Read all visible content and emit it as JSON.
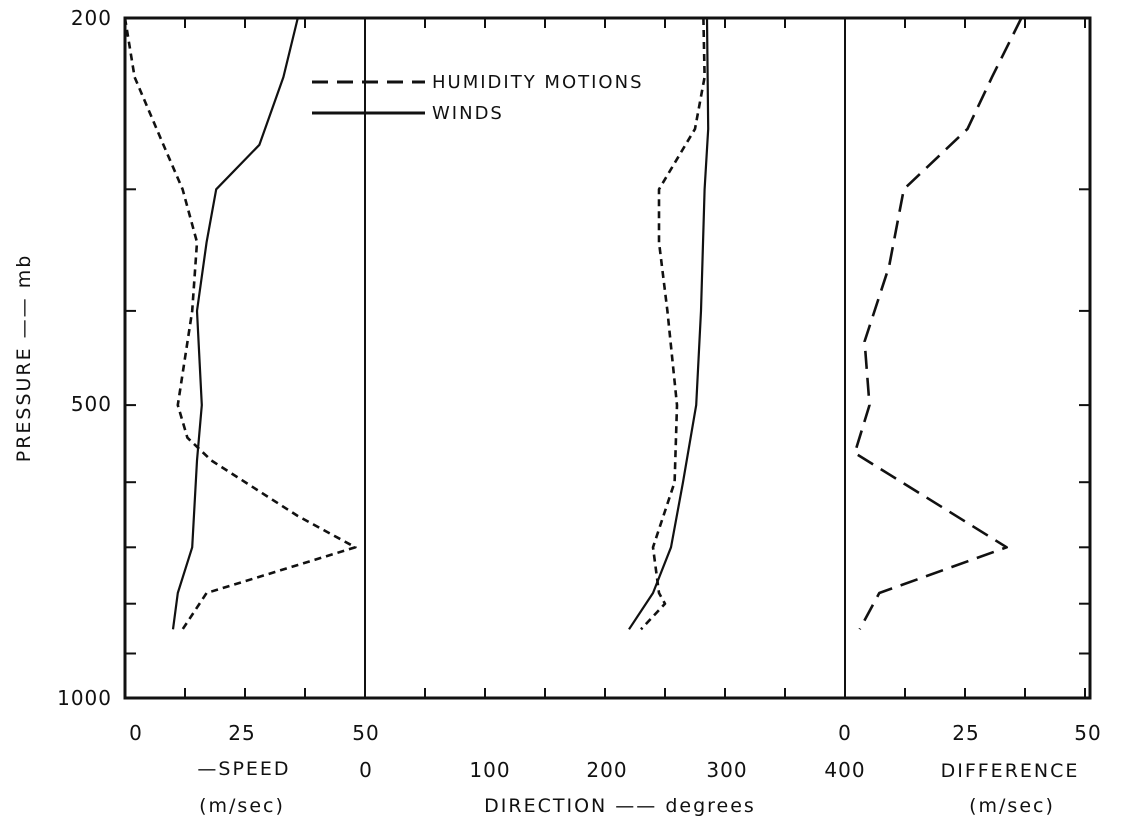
{
  "chart_data": {
    "type": "line",
    "ylabel": "PRESSURE —— mb",
    "y_scale": "log",
    "y_reversed": true,
    "ylim": [
      200,
      1000
    ],
    "y_ticks": [
      200,
      300,
      400,
      500,
      600,
      700,
      800,
      900,
      1000
    ],
    "y_tick_labels": [
      "200",
      "500",
      "1000"
    ],
    "legend": {
      "placement": "top",
      "entries": [
        {
          "label": "HUMIDITY MOTIONS",
          "style": "dashed"
        },
        {
          "label": "WINDS",
          "style": "solid"
        }
      ]
    },
    "panels": [
      {
        "name": "speed",
        "xlabel_lines": [
          "—SPEED",
          "(m/sec)"
        ],
        "xlim": [
          0,
          50
        ],
        "x_tick_labels": [
          "0",
          "25",
          "50"
        ],
        "series": [
          {
            "name": "HUMIDITY MOTIONS",
            "style": "dashed",
            "points": [
              [
                0,
                200
              ],
              [
                2,
                230
              ],
              [
                8,
                270
              ],
              [
                12,
                300
              ],
              [
                15,
                340
              ],
              [
                14,
                400
              ],
              [
                11,
                500
              ],
              [
                13,
                540
              ],
              [
                18,
                570
              ],
              [
                36,
                650
              ],
              [
                48,
                700
              ],
              [
                17,
                780
              ],
              [
                12,
                850
              ]
            ]
          },
          {
            "name": "WINDS",
            "style": "solid",
            "points": [
              [
                36,
                200
              ],
              [
                33,
                230
              ],
              [
                28,
                270
              ],
              [
                19,
                300
              ],
              [
                17,
                340
              ],
              [
                15,
                400
              ],
              [
                16,
                500
              ],
              [
                15,
                570
              ],
              [
                14,
                700
              ],
              [
                11,
                780
              ],
              [
                10,
                850
              ]
            ]
          }
        ]
      },
      {
        "name": "direction",
        "xlabel_lines": [
          "DIRECTION —— degrees"
        ],
        "xlim": [
          0,
          400
        ],
        "x_tick_labels": [
          "0",
          "100",
          "200",
          "300",
          "400"
        ],
        "series": [
          {
            "name": "HUMIDITY MOTIONS",
            "style": "dashed",
            "points": [
              [
                282,
                200
              ],
              [
                283,
                230
              ],
              [
                275,
                260
              ],
              [
                245,
                300
              ],
              [
                245,
                340
              ],
              [
                252,
                400
              ],
              [
                260,
                500
              ],
              [
                258,
                600
              ],
              [
                240,
                700
              ],
              [
                245,
                780
              ],
              [
                250,
                800
              ],
              [
                230,
                850
              ]
            ]
          },
          {
            "name": "WINDS",
            "style": "solid",
            "points": [
              [
                285,
                200
              ],
              [
                286,
                260
              ],
              [
                283,
                300
              ],
              [
                280,
                400
              ],
              [
                276,
                500
              ],
              [
                265,
                600
              ],
              [
                255,
                700
              ],
              [
                240,
                780
              ],
              [
                220,
                850
              ]
            ]
          }
        ]
      },
      {
        "name": "difference",
        "xlabel_lines": [
          "DIFFERENCE",
          "(m/sec)"
        ],
        "xlim": [
          0,
          50
        ],
        "x_tick_labels": [
          "0",
          "25",
          "50"
        ],
        "series": [
          {
            "name": "HUMIDITY MOTIONS",
            "style": "dashed",
            "points": [
              [
                36,
                200
              ],
              [
                30,
                230
              ],
              [
                25,
                260
              ],
              [
                12,
                300
              ],
              [
                9,
                360
              ],
              [
                4,
                430
              ],
              [
                5,
                500
              ],
              [
                2,
                560
              ],
              [
                33,
                700
              ],
              [
                7,
                780
              ],
              [
                3,
                850
              ]
            ]
          }
        ]
      }
    ]
  }
}
